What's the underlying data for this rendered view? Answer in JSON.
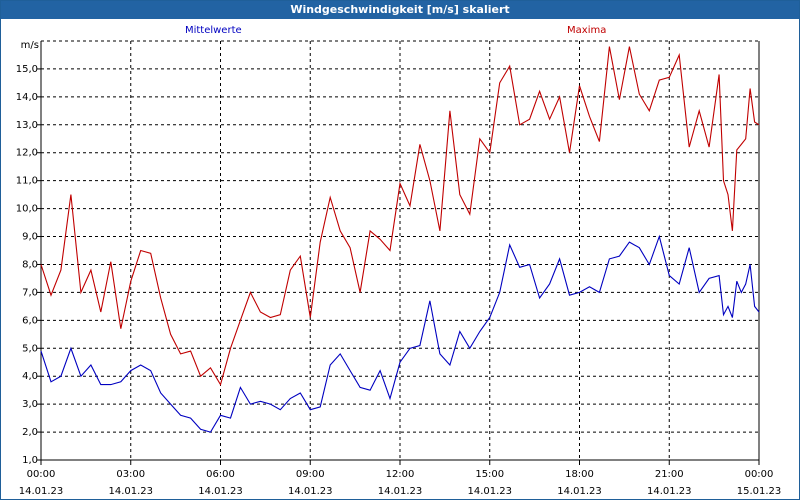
{
  "window": {
    "title": "Windgeschwindigkeit [m/s] skaliert"
  },
  "chart_data": {
    "type": "line",
    "title": "Windgeschwindigkeit [m/s] skaliert",
    "ylabel": "m/s",
    "ylim": [
      1.0,
      16.0
    ],
    "xlim": [
      "2023-01-14T00:00",
      "2023-01-15T00:00"
    ],
    "y_ticks": [
      "1,0",
      "2,0",
      "3,0",
      "4,0",
      "5,0",
      "6,0",
      "7,0",
      "8,0",
      "9,0",
      "10,0",
      "11,0",
      "12,0",
      "13,0",
      "14,0",
      "15,0"
    ],
    "x_ticks": [
      {
        "time": "00:00",
        "date": "14.01.23"
      },
      {
        "time": "03:00",
        "date": "14.01.23"
      },
      {
        "time": "06:00",
        "date": "14.01.23"
      },
      {
        "time": "09:00",
        "date": "14.01.23"
      },
      {
        "time": "12:00",
        "date": "14.01.23"
      },
      {
        "time": "15:00",
        "date": "14.01.23"
      },
      {
        "time": "18:00",
        "date": "14.01.23"
      },
      {
        "time": "21:00",
        "date": "14.01.23"
      },
      {
        "time": "00:00",
        "date": "15.01.23"
      }
    ],
    "grid": true,
    "series": [
      {
        "name": "Mittelwerte",
        "color": "#0000c0",
        "x": [
          "00:00",
          "00:20",
          "00:40",
          "01:00",
          "01:20",
          "01:40",
          "02:00",
          "02:20",
          "02:40",
          "03:00",
          "03:20",
          "03:40",
          "04:00",
          "04:20",
          "04:40",
          "05:00",
          "05:20",
          "05:40",
          "06:00",
          "06:20",
          "06:40",
          "07:00",
          "07:20",
          "07:40",
          "08:00",
          "08:20",
          "08:40",
          "09:00",
          "09:20",
          "09:40",
          "10:00",
          "10:20",
          "10:40",
          "11:00",
          "11:20",
          "11:40",
          "12:00",
          "12:20",
          "12:40",
          "13:00",
          "13:20",
          "13:40",
          "14:00",
          "14:20",
          "14:40",
          "15:00",
          "15:20",
          "15:40",
          "16:00",
          "16:20",
          "16:40",
          "17:00",
          "17:20",
          "17:40",
          "18:00",
          "18:20",
          "18:40",
          "19:00",
          "19:20",
          "19:40",
          "20:00",
          "20:20",
          "20:40",
          "21:00",
          "21:20",
          "21:40",
          "22:00",
          "22:20",
          "22:40",
          "23:00",
          "23:20",
          "23:40",
          "24:00"
        ],
        "values": [
          4.9,
          3.8,
          4.0,
          5.0,
          4.0,
          4.4,
          3.7,
          3.7,
          3.8,
          4.2,
          4.4,
          4.2,
          3.4,
          3.0,
          2.6,
          2.5,
          2.1,
          2.0,
          2.6,
          2.5,
          3.6,
          3.0,
          3.1,
          3.0,
          2.8,
          3.2,
          3.4,
          2.8,
          2.9,
          4.4,
          4.8,
          4.2,
          3.6,
          3.5,
          4.2,
          3.2,
          4.5,
          5.0,
          5.1,
          6.7,
          4.8,
          4.4,
          5.6,
          5.0,
          5.6,
          6.1,
          7.0,
          8.7,
          7.9,
          8.0,
          6.8,
          7.3,
          8.2,
          6.9,
          7.0,
          7.2,
          7.0,
          8.2,
          8.3,
          8.8,
          8.6,
          8.0,
          9.0,
          7.6,
          7.3,
          8.6,
          7.0,
          7.5,
          7.6,
          8.0,
          7.2,
          6.0,
          5.0
        ],
        "extra_tail": [
          6.2,
          6.5,
          6.1,
          7.4,
          7.0,
          7.3,
          8.0,
          6.5,
          6.3
        ]
      },
      {
        "name": "Maxima",
        "color": "#c00000",
        "x": [
          "00:00",
          "00:20",
          "00:40",
          "01:00",
          "01:20",
          "01:40",
          "02:00",
          "02:20",
          "02:40",
          "03:00",
          "03:20",
          "03:40",
          "04:00",
          "04:20",
          "04:40",
          "05:00",
          "05:20",
          "05:40",
          "06:00",
          "06:20",
          "06:40",
          "07:00",
          "07:20",
          "07:40",
          "08:00",
          "08:20",
          "08:40",
          "09:00",
          "09:20",
          "09:40",
          "10:00",
          "10:20",
          "10:40",
          "11:00",
          "11:20",
          "11:40",
          "12:00",
          "12:20",
          "12:40",
          "13:00",
          "13:20",
          "13:40",
          "14:00",
          "14:20",
          "14:40",
          "15:00",
          "15:20",
          "15:40",
          "16:00",
          "16:20",
          "16:40",
          "17:00",
          "17:20",
          "17:40",
          "18:00",
          "18:20",
          "18:40",
          "19:00",
          "19:20",
          "19:40",
          "20:00",
          "20:20",
          "20:40",
          "21:00",
          "21:20",
          "21:40",
          "22:00",
          "22:20",
          "22:40",
          "23:00",
          "23:20",
          "23:40",
          "24:00"
        ],
        "values": [
          8.0,
          6.9,
          7.8,
          10.5,
          7.0,
          7.8,
          6.3,
          8.1,
          5.7,
          7.4,
          8.5,
          8.4,
          6.8,
          5.5,
          4.8,
          4.9,
          4.0,
          4.3,
          3.7,
          5.0,
          6.0,
          7.0,
          6.3,
          6.1,
          6.2,
          7.8,
          8.3,
          6.1,
          8.8,
          10.4,
          9.2,
          8.6,
          7.0,
          9.2,
          8.9,
          8.5,
          10.9,
          10.1,
          12.3,
          11.0,
          9.2,
          13.5,
          10.5,
          9.8,
          12.5,
          12.0,
          14.5,
          15.1,
          13.0,
          13.2,
          14.2,
          13.2,
          14.0,
          12.0,
          14.4,
          13.3,
          12.4,
          15.8,
          13.9,
          15.8,
          14.1,
          13.5,
          14.6,
          14.7,
          15.5,
          12.2,
          13.5,
          12.2,
          14.8,
          11.0,
          9.2,
          8.5,
          12.0
        ],
        "extra_tail": [
          11.0,
          10.5,
          9.2,
          12.1,
          12.3,
          12.5,
          14.3,
          13.1,
          13.0
        ]
      }
    ]
  }
}
